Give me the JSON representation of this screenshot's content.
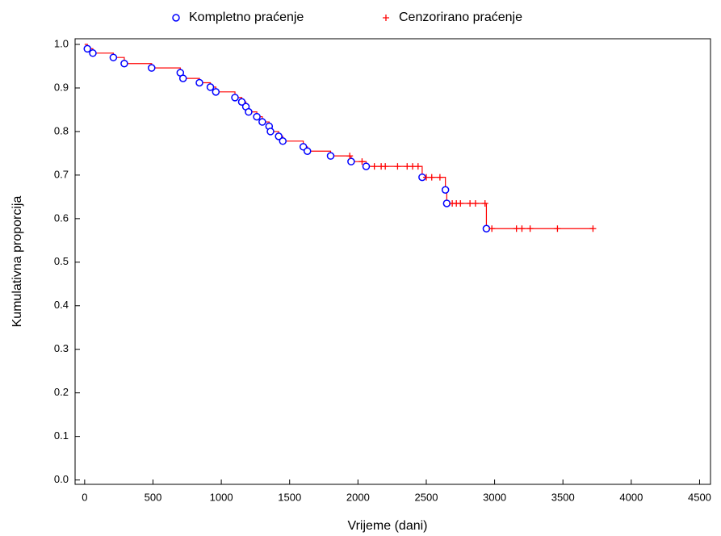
{
  "chart_data": {
    "type": "step",
    "xlabel": "Vrijeme (dani)",
    "ylabel": "Kumulativna proporcija",
    "xlim": [
      -70,
      4580
    ],
    "ylim": [
      -0.01,
      1.013
    ],
    "xticks": [
      0,
      500,
      1000,
      1500,
      2000,
      2500,
      3000,
      3500,
      4000,
      4500
    ],
    "yticks": [
      {
        "value": 0,
        "label": "0.0"
      },
      0.1,
      0.2,
      0.3,
      0.4,
      0.5,
      0.6,
      0.7,
      0.8,
      0.9,
      {
        "value": 1,
        "label": "1.0"
      }
    ],
    "legend": "top",
    "step_line": {
      "color": "#ff0000",
      "x": [
        0,
        20,
        60,
        210,
        290,
        490,
        700,
        720,
        840,
        920,
        960,
        1100,
        1150,
        1180,
        1200,
        1260,
        1300,
        1350,
        1360,
        1420,
        1450,
        1600,
        1630,
        1800,
        1950,
        2060,
        2470,
        2640,
        2650,
        2940,
        3720
      ],
      "values": [
        1.0,
        0.99,
        0.98,
        0.97,
        0.956,
        0.946,
        0.935,
        0.922,
        0.912,
        0.902,
        0.891,
        0.878,
        0.868,
        0.857,
        0.845,
        0.834,
        0.822,
        0.812,
        0.8,
        0.789,
        0.778,
        0.765,
        0.755,
        0.744,
        0.731,
        0.72,
        0.695,
        0.666,
        0.635,
        0.577,
        0.577
      ]
    },
    "series": [
      {
        "name": "Kompletno praćenje",
        "color": "#0000ff",
        "marker": "circle",
        "x": [
          20,
          60,
          210,
          290,
          490,
          700,
          720,
          840,
          920,
          960,
          1100,
          1150,
          1180,
          1200,
          1260,
          1300,
          1350,
          1360,
          1420,
          1450,
          1600,
          1630,
          1800,
          1950,
          2060,
          2470,
          2640,
          2650,
          2940
        ],
        "values": [
          0.99,
          0.98,
          0.97,
          0.956,
          0.946,
          0.935,
          0.922,
          0.912,
          0.902,
          0.891,
          0.878,
          0.868,
          0.857,
          0.845,
          0.834,
          0.822,
          0.812,
          0.8,
          0.789,
          0.778,
          0.765,
          0.755,
          0.744,
          0.731,
          0.72,
          0.695,
          0.666,
          0.635,
          0.577
        ]
      },
      {
        "name": "Cenzorirano praćenje",
        "color": "#ff0000",
        "marker": "plus",
        "x": [
          1940,
          2030,
          2120,
          2170,
          2200,
          2290,
          2360,
          2400,
          2440,
          2500,
          2540,
          2600,
          2690,
          2720,
          2750,
          2820,
          2860,
          2930,
          2980,
          3160,
          3200,
          3260,
          3460,
          3720
        ],
        "values": [
          0.744,
          0.731,
          0.72,
          0.72,
          0.72,
          0.72,
          0.72,
          0.72,
          0.72,
          0.695,
          0.695,
          0.695,
          0.635,
          0.635,
          0.635,
          0.635,
          0.635,
          0.635,
          0.577,
          0.577,
          0.577,
          0.577,
          0.577,
          0.577
        ]
      }
    ]
  }
}
